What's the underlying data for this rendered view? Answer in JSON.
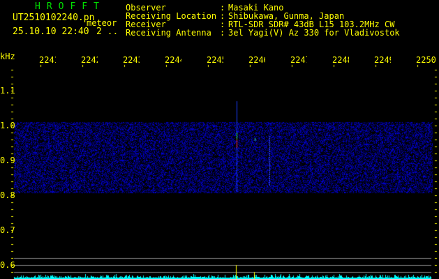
{
  "header": {
    "app_title": "HROFFT",
    "filename": "UT2510102240.pn",
    "mode": "meteor",
    "datetime": "25.10.10 22:40",
    "extra": "2 ..",
    "info": [
      {
        "label": "Observer",
        "value": "Masaki Kano"
      },
      {
        "label": "Receiving Location",
        "value": "Shibukawa, Gunma, Japan"
      },
      {
        "label": "Receiver",
        "value": "RTL-SDR SDR# 43dB L15 103.2MHz CW"
      },
      {
        "label": "Receiving Antenna",
        "value": "3el Yagi(V) Az 330 for Vladivostok"
      }
    ],
    "separator": ":"
  },
  "axis": {
    "unit": "kHz",
    "freq_labels": [
      "2241",
      "2242",
      "2243",
      "2244",
      "2245",
      "2246",
      "2247",
      "2248",
      "2249",
      "2250"
    ],
    "y_labels": [
      "1.1",
      "1.0",
      "0.9",
      "0.8",
      "0.7",
      "0.6"
    ]
  },
  "colors": {
    "text": "#ffff00",
    "title": "#00e000",
    "noise": "#0000ff",
    "spectrum": "#00ffff",
    "grid": "#808080"
  }
}
